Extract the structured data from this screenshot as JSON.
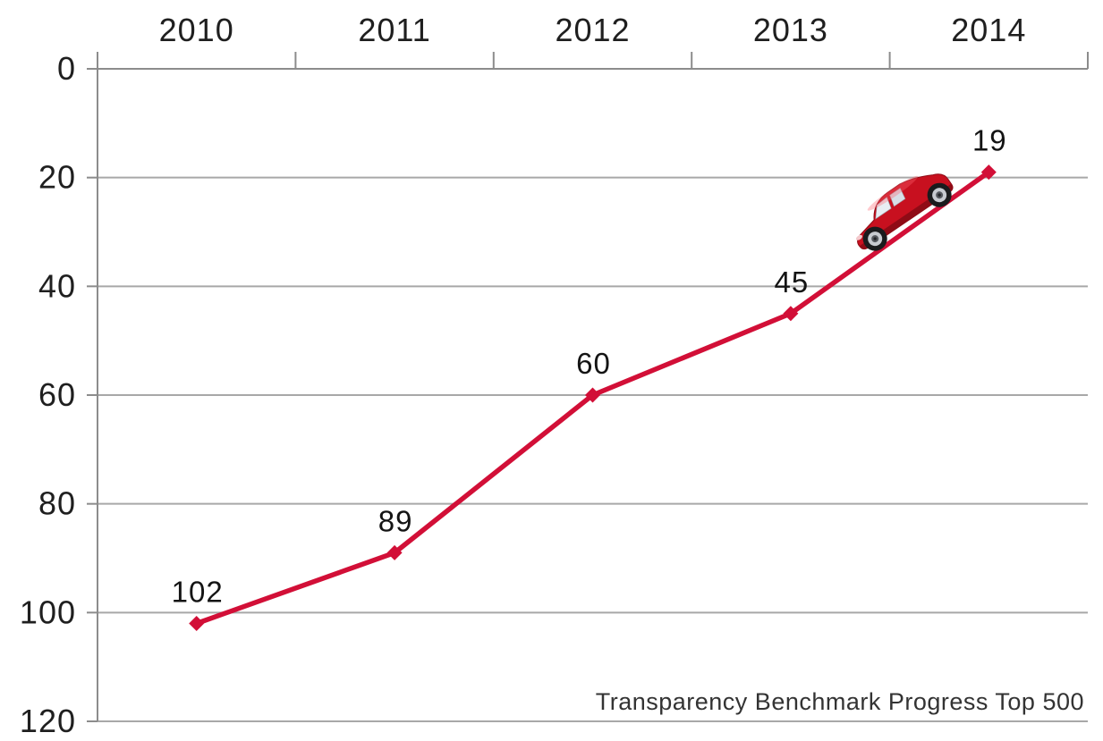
{
  "chart_data": {
    "type": "line",
    "categories": [
      "2010",
      "2011",
      "2012",
      "2013",
      "2014"
    ],
    "series": [
      {
        "name": "Transparency Benchmark Progress Top 500",
        "values": [
          102,
          89,
          60,
          45,
          19
        ]
      }
    ],
    "data_labels": [
      "102",
      "89",
      "60",
      "45",
      "19"
    ],
    "caption": "Transparency Benchmark Progress Top 500",
    "title": "",
    "xlabel": "",
    "ylabel": "",
    "x_axis": {
      "position": "top",
      "tick_marks": "category-boundaries"
    },
    "y_axis": {
      "min": 0,
      "max": 120,
      "step": 20,
      "inverted": true,
      "tick_labels": [
        "0",
        "20",
        "40",
        "60",
        "80",
        "100",
        "120"
      ]
    },
    "grid": true,
    "legend_position": "none",
    "marker_shape": "diamond",
    "decoration": "red-sports-car-riding-up-the-line-between-2013-and-2014",
    "colors": {
      "line": "#d20f37",
      "marker": "#d20f37",
      "grid": "#a8a8a8",
      "axis": "#8c8c8c",
      "text": "#1f1f1f",
      "caption_text": "#333333",
      "background": "#ffffff",
      "car_body": "#c8101f",
      "car_shade": "#8f0b16",
      "car_window": "#e8edf3",
      "car_tire": "#1a1b1d",
      "car_rim": "#c7cad0"
    }
  }
}
